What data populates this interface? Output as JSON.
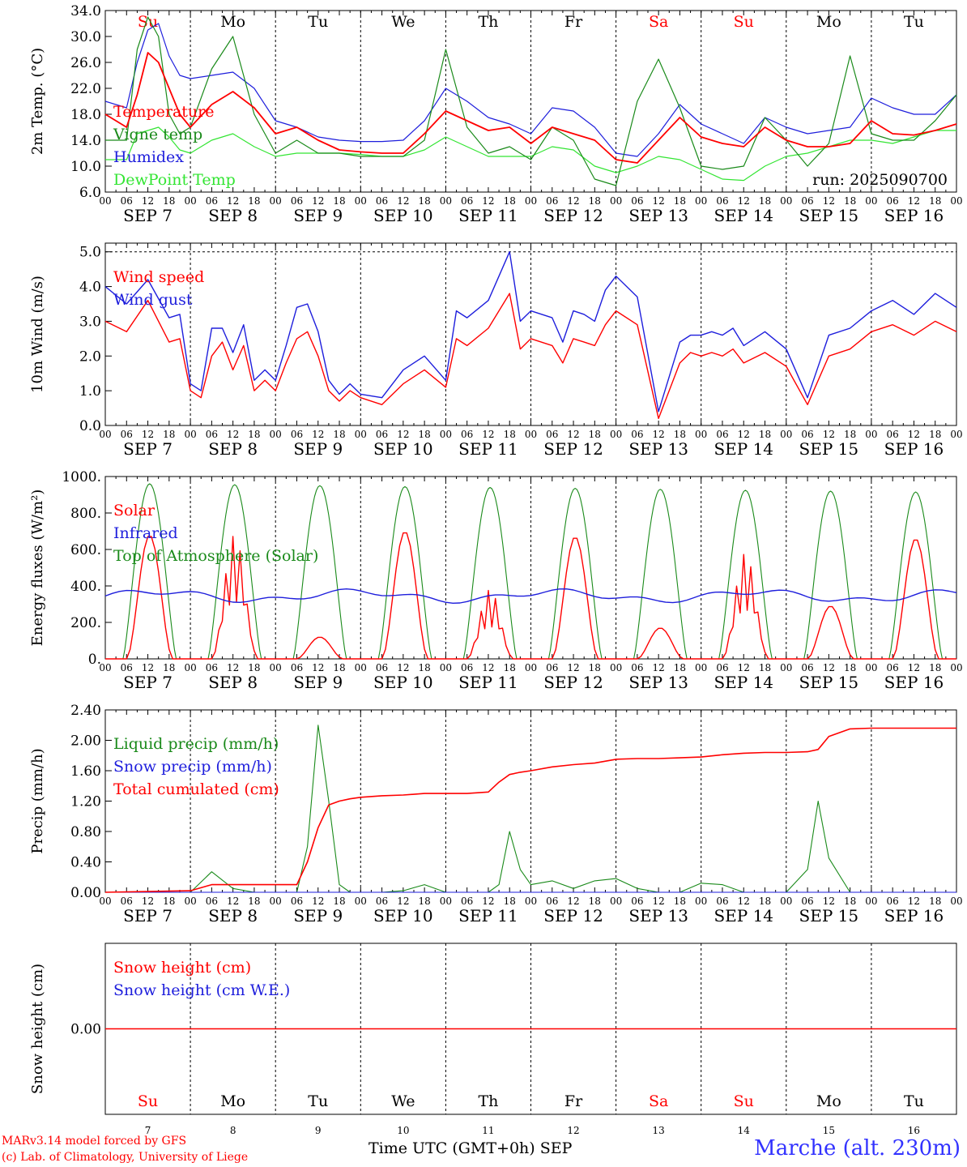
{
  "footer": {
    "credit_line1": "MARv3.14 model forced by GFS",
    "credit_line2": "(c) Lab. of Climatology, University of Liege",
    "x_axis_title": "Time UTC (GMT+0h) SEP",
    "station": "Marche (alt. 230m)"
  },
  "colors": {
    "red": "#ff0000",
    "blue": "#1e1edc",
    "green": "#1a8a1a",
    "lightgreen": "#33e533",
    "grid": "#555555"
  },
  "days": [
    {
      "weekday": "Su",
      "date": "SEP  7",
      "num": "7",
      "weekend": true
    },
    {
      "weekday": "Mo",
      "date": "SEP  8",
      "num": "8",
      "weekend": false
    },
    {
      "weekday": "Tu",
      "date": "SEP  9",
      "num": "9",
      "weekend": false
    },
    {
      "weekday": "We",
      "date": "SEP 10",
      "num": "10",
      "weekend": false
    },
    {
      "weekday": "Th",
      "date": "SEP 11",
      "num": "11",
      "weekend": false
    },
    {
      "weekday": "Fr",
      "date": "SEP 12",
      "num": "12",
      "weekend": false
    },
    {
      "weekday": "Sa",
      "date": "SEP 13",
      "num": "13",
      "weekend": true
    },
    {
      "weekday": "Su",
      "date": "SEP 14",
      "num": "14",
      "weekend": true
    },
    {
      "weekday": "Mo",
      "date": "SEP 15",
      "num": "15",
      "weekend": false
    },
    {
      "weekday": "Tu",
      "date": "SEP 16",
      "num": "16",
      "weekend": false
    }
  ],
  "hour_labels": [
    "00",
    "06",
    "12",
    "18"
  ],
  "chart_data": [
    {
      "type": "line",
      "ylabel": "2m Temp. (°C)",
      "ylim": [
        6,
        34
      ],
      "yticks": [
        "6.0",
        "10.0",
        "14.0",
        "18.0",
        "22.0",
        "26.0",
        "30.0",
        "34.0"
      ],
      "annotation": "run: 2025090700",
      "x": [
        0,
        6,
        9,
        12,
        15,
        18,
        21,
        24,
        30,
        36,
        42,
        48,
        54,
        60,
        66,
        72,
        78,
        84,
        90,
        96,
        102,
        108,
        114,
        120,
        126,
        132,
        138,
        144,
        150,
        156,
        162,
        168,
        174,
        180,
        186,
        192,
        198,
        204,
        210,
        216,
        222,
        228,
        234,
        240
      ],
      "series": [
        {
          "name": "Temperature",
          "color": "red",
          "values": [
            18,
            16,
            21,
            27.5,
            26,
            22,
            18,
            16,
            19.5,
            21.5,
            19,
            15,
            16,
            14,
            12.5,
            12.2,
            12,
            12,
            15,
            18.5,
            17,
            15.5,
            16,
            13.5,
            16,
            15,
            14,
            11,
            10.5,
            14,
            17.5,
            14.5,
            13.5,
            13,
            16,
            14,
            13,
            13,
            13.5,
            17,
            15,
            14.8,
            15.5,
            16.5
          ]
        },
        {
          "name": "Vigne temp",
          "color": "green",
          "values": [
            14,
            14,
            28,
            33,
            30,
            18,
            15,
            16,
            25,
            30,
            18,
            12,
            14,
            12,
            12,
            11.5,
            11.5,
            11.5,
            14,
            28,
            16,
            12,
            13,
            11,
            16,
            14,
            8,
            7,
            20,
            26.5,
            19,
            10,
            9.5,
            10,
            17.5,
            14,
            10,
            13.5,
            27,
            15,
            14,
            14,
            17,
            21
          ]
        },
        {
          "name": "Humidex",
          "color": "blue",
          "values": [
            20,
            19,
            26,
            31,
            32,
            27,
            24,
            23.5,
            24,
            24.5,
            22,
            17,
            16,
            14.5,
            14,
            13.8,
            13.8,
            14,
            17,
            22,
            20,
            17.5,
            16.5,
            15,
            19,
            18.5,
            16,
            12,
            11.5,
            15,
            19.5,
            16.5,
            15,
            13.5,
            17.5,
            16,
            15,
            15.5,
            16,
            20.5,
            19,
            18,
            18,
            21
          ]
        },
        {
          "name": "DewPoint Temp",
          "color": "lightgreen",
          "values": [
            11,
            11,
            15,
            15.5,
            16,
            14.5,
            12.5,
            12,
            14,
            15,
            13,
            11.5,
            12,
            12,
            12,
            11.8,
            11.5,
            11.5,
            12.5,
            14.5,
            13,
            11.5,
            11.5,
            11.5,
            13,
            12.5,
            10,
            9,
            10,
            11.5,
            11,
            9.5,
            8,
            7.8,
            10,
            11.5,
            12,
            13,
            14,
            14,
            13.5,
            14.5,
            15.5,
            15.5
          ]
        }
      ]
    },
    {
      "type": "line",
      "ylabel": "10m Wind (m/s)",
      "ylim": [
        0,
        5.25
      ],
      "yticks": [
        "0.0",
        "1.0",
        "2.0",
        "3.0",
        "4.0",
        "5.0"
      ],
      "x": [
        0,
        6,
        12,
        18,
        21,
        24,
        27,
        30,
        33,
        36,
        39,
        42,
        45,
        48,
        51,
        54,
        57,
        60,
        63,
        66,
        69,
        72,
        78,
        84,
        90,
        96,
        99,
        102,
        108,
        114,
        117,
        120,
        126,
        129,
        132,
        135,
        138,
        141,
        144,
        150,
        156,
        162,
        165,
        168,
        171,
        174,
        177,
        180,
        186,
        192,
        198,
        204,
        210,
        216,
        222,
        228,
        234,
        240
      ],
      "series": [
        {
          "name": "Wind speed",
          "color": "red",
          "values": [
            3.0,
            2.7,
            3.6,
            2.4,
            2.5,
            1.0,
            0.8,
            2.0,
            2.4,
            1.6,
            2.3,
            1.0,
            1.3,
            1.0,
            1.8,
            2.5,
            2.7,
            2.0,
            1.0,
            0.7,
            1.0,
            0.8,
            0.6,
            1.2,
            1.6,
            1.1,
            2.5,
            2.3,
            2.8,
            3.8,
            2.2,
            2.5,
            2.3,
            1.8,
            2.5,
            2.4,
            2.3,
            2.9,
            3.3,
            2.9,
            0.2,
            1.8,
            2.1,
            2.0,
            2.1,
            2.0,
            2.2,
            1.8,
            2.1,
            1.7,
            0.6,
            2.0,
            2.2,
            2.7,
            2.9,
            2.6,
            3.0,
            2.7
          ]
        },
        {
          "name": "Wind gust",
          "color": "blue",
          "values": [
            4.0,
            3.5,
            4.2,
            3.1,
            3.2,
            1.2,
            1.0,
            2.8,
            2.8,
            2.1,
            2.9,
            1.3,
            1.6,
            1.3,
            2.3,
            3.4,
            3.5,
            2.7,
            1.3,
            0.9,
            1.2,
            0.9,
            0.8,
            1.6,
            2.0,
            1.3,
            3.3,
            3.1,
            3.6,
            5.0,
            3.0,
            3.3,
            3.1,
            2.4,
            3.3,
            3.2,
            3.0,
            3.9,
            4.3,
            3.7,
            0.4,
            2.4,
            2.6,
            2.6,
            2.7,
            2.6,
            2.8,
            2.3,
            2.7,
            2.2,
            0.8,
            2.6,
            2.8,
            3.3,
            3.6,
            3.2,
            3.8,
            3.4
          ]
        }
      ]
    },
    {
      "type": "line",
      "ylabel": "Energy fluxes (W/m²)",
      "ylim": [
        0,
        1000
      ],
      "yticks": [
        "0.",
        "200.",
        "400.",
        "600.",
        "800.",
        "1000."
      ],
      "series": [
        {
          "name": "Solar",
          "color": "red",
          "day_peaks": [
            680,
            680,
            120,
            700,
            380,
            670,
            170,
            580,
            290,
            660
          ]
        },
        {
          "name": "Infrared",
          "color": "blue",
          "level": 345
        },
        {
          "name": "Top of Atmosphere (Solar)",
          "color": "green",
          "day_peaks": [
            960,
            955,
            950,
            945,
            940,
            935,
            930,
            925,
            920,
            915
          ]
        }
      ]
    },
    {
      "type": "line",
      "ylabel": "Precip (mm/h)",
      "ylim": [
        0,
        2.4
      ],
      "yticks": [
        "0.00",
        "0.40",
        "0.80",
        "1.20",
        "1.60",
        "2.00",
        "2.40"
      ],
      "x": [
        0,
        24,
        30,
        36,
        42,
        48,
        54,
        57,
        60,
        63,
        66,
        69,
        72,
        78,
        84,
        90,
        96,
        102,
        108,
        111,
        114,
        117,
        120,
        126,
        132,
        138,
        144,
        150,
        156,
        162,
        168,
        174,
        180,
        186,
        192,
        198,
        201,
        204,
        210,
        216,
        222,
        228,
        234,
        240
      ],
      "series": [
        {
          "name": "Liquid precip (mm/h)",
          "color": "green",
          "values": [
            0,
            0,
            0.27,
            0.05,
            0,
            0,
            0,
            0.6,
            2.2,
            1.2,
            0.1,
            0,
            0,
            0,
            0.02,
            0.1,
            0,
            0,
            0,
            0.1,
            0.8,
            0.3,
            0.1,
            0.15,
            0.05,
            0.15,
            0.18,
            0.05,
            0,
            0,
            0.12,
            0.1,
            0,
            0,
            0,
            0.3,
            1.2,
            0.45,
            0,
            0,
            0,
            0,
            0,
            0
          ]
        },
        {
          "name": "Snow precip (mm/h)",
          "color": "blue",
          "values": [
            0,
            0,
            0,
            0,
            0,
            0,
            0,
            0,
            0,
            0,
            0,
            0,
            0,
            0,
            0,
            0,
            0,
            0,
            0,
            0,
            0,
            0,
            0,
            0,
            0,
            0,
            0,
            0,
            0,
            0,
            0,
            0,
            0,
            0,
            0,
            0,
            0,
            0,
            0,
            0,
            0,
            0,
            0,
            0
          ]
        },
        {
          "name": "Total cumulated (cm)",
          "color": "red",
          "values": [
            0,
            0.02,
            0.1,
            0.1,
            0.1,
            0.1,
            0.1,
            0.4,
            0.85,
            1.15,
            1.2,
            1.23,
            1.25,
            1.27,
            1.28,
            1.3,
            1.3,
            1.3,
            1.32,
            1.45,
            1.55,
            1.58,
            1.6,
            1.65,
            1.68,
            1.7,
            1.75,
            1.76,
            1.76,
            1.77,
            1.78,
            1.81,
            1.83,
            1.84,
            1.84,
            1.85,
            1.88,
            2.05,
            2.15,
            2.16,
            2.16,
            2.16,
            2.16,
            2.16
          ]
        }
      ]
    },
    {
      "type": "line",
      "ylabel": "Snow height (cm)",
      "ylim": [
        -1,
        1
      ],
      "yticks": [
        "0.00"
      ],
      "series": [
        {
          "name": "Snow height (cm)",
          "color": "red",
          "values": [
            0,
            0
          ]
        },
        {
          "name": "Snow height (cm W.E.)",
          "color": "blue",
          "values": [
            0,
            0
          ]
        }
      ]
    }
  ]
}
